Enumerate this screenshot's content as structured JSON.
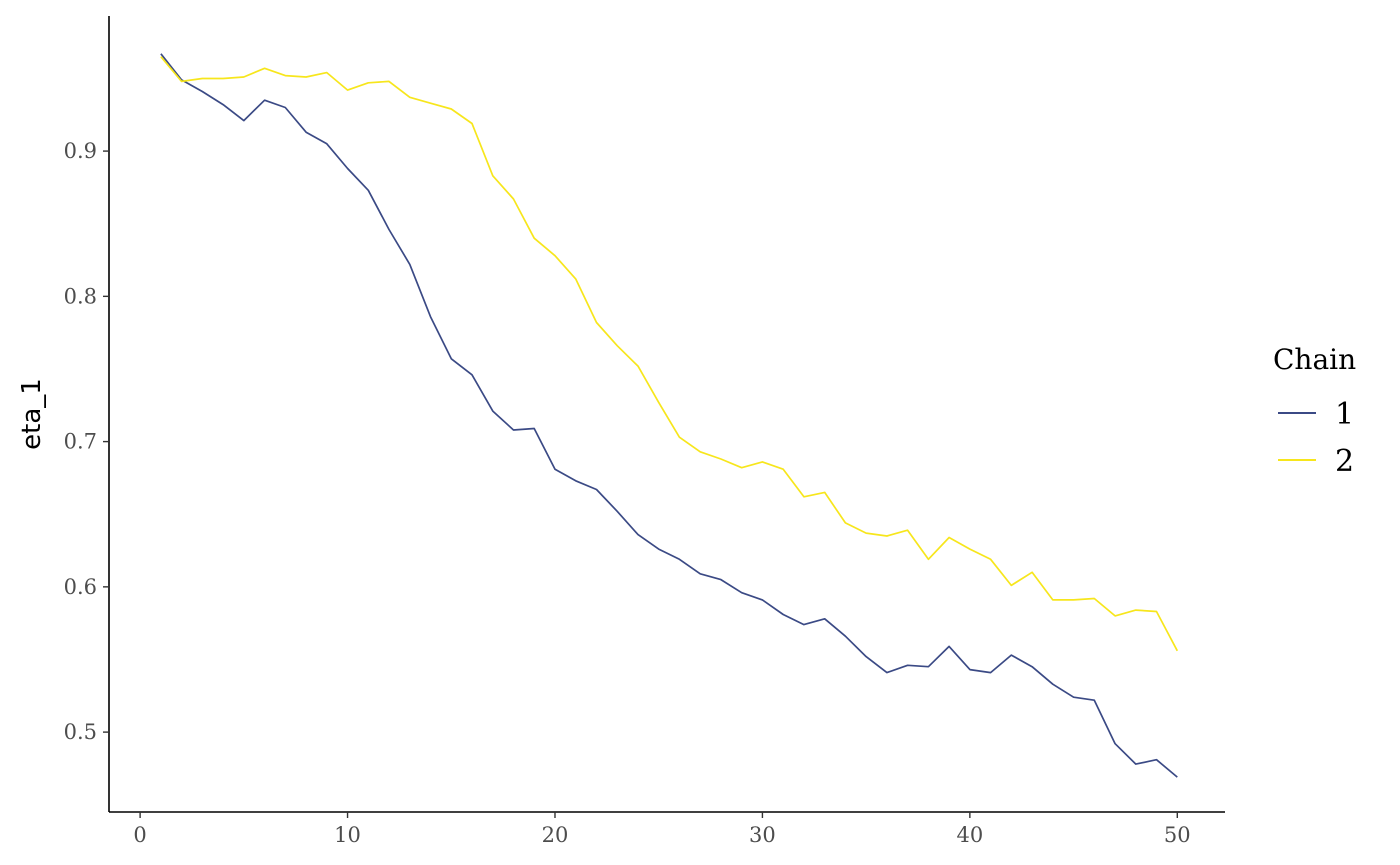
{
  "chart_data": {
    "type": "line",
    "xlabel": "",
    "ylabel": "eta_1",
    "xlim": [
      -1.5,
      52.3
    ],
    "ylim": [
      0.445,
      0.993
    ],
    "x_ticks": [
      0,
      10,
      20,
      30,
      40,
      50
    ],
    "x_tick_labels": [
      "0",
      "10",
      "20",
      "30",
      "40",
      "50"
    ],
    "y_ticks": [
      0.5,
      0.6,
      0.7,
      0.8,
      0.9
    ],
    "y_tick_labels": [
      "0.5",
      "0.6",
      "0.7",
      "0.8",
      "0.9"
    ],
    "grid": false,
    "legend": {
      "title": "Chain",
      "position": "right"
    },
    "x": [
      1,
      2,
      3,
      4,
      5,
      6,
      7,
      8,
      9,
      10,
      11,
      12,
      13,
      14,
      15,
      16,
      17,
      18,
      19,
      20,
      21,
      22,
      23,
      24,
      25,
      26,
      27,
      28,
      29,
      30,
      31,
      32,
      33,
      34,
      35,
      36,
      37,
      38,
      39,
      40,
      41,
      42,
      43,
      44,
      45,
      46,
      47,
      48,
      49,
      50
    ],
    "series": [
      {
        "name": "1",
        "color": "#3b4a85",
        "values": [
          0.967,
          0.949,
          0.941,
          0.932,
          0.921,
          0.935,
          0.93,
          0.913,
          0.905,
          0.888,
          0.873,
          0.846,
          0.822,
          0.786,
          0.757,
          0.746,
          0.721,
          0.708,
          0.709,
          0.681,
          0.673,
          0.667,
          0.652,
          0.636,
          0.626,
          0.619,
          0.609,
          0.605,
          0.596,
          0.591,
          0.581,
          0.574,
          0.578,
          0.566,
          0.552,
          0.541,
          0.546,
          0.545,
          0.559,
          0.543,
          0.541,
          0.553,
          0.545,
          0.533,
          0.524,
          0.522,
          0.492,
          0.478,
          0.481,
          0.469
        ]
      },
      {
        "name": "2",
        "color": "#f7e61c",
        "values": [
          0.965,
          0.948,
          0.95,
          0.95,
          0.951,
          0.957,
          0.952,
          0.951,
          0.954,
          0.942,
          0.947,
          0.948,
          0.937,
          0.933,
          0.929,
          0.919,
          0.883,
          0.867,
          0.84,
          0.828,
          0.812,
          0.782,
          0.766,
          0.752,
          0.727,
          0.703,
          0.693,
          0.688,
          0.682,
          0.686,
          0.681,
          0.662,
          0.665,
          0.644,
          0.637,
          0.635,
          0.639,
          0.619,
          0.634,
          0.626,
          0.619,
          0.601,
          0.61,
          0.591,
          0.591,
          0.592,
          0.58,
          0.584,
          0.583,
          0.556
        ]
      }
    ]
  }
}
